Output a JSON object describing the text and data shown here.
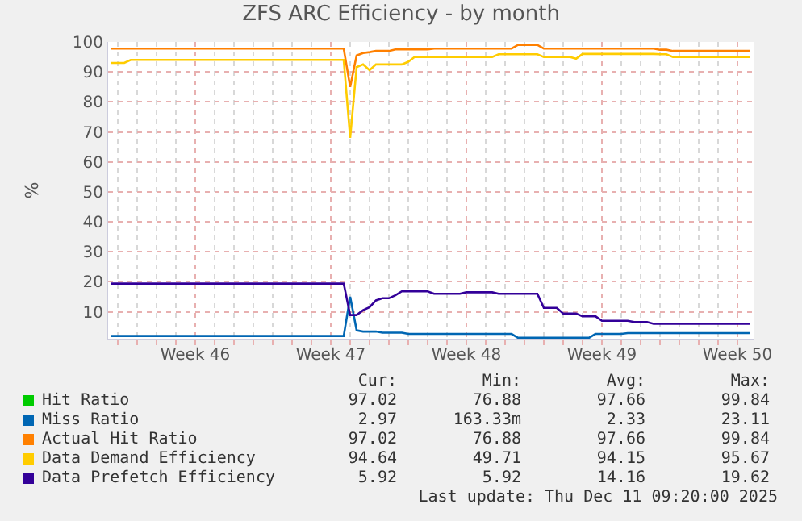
{
  "chart_data": {
    "type": "line",
    "title": "ZFS ARC Efficiency - by month",
    "ylabel": "%",
    "categories": [
      null,
      null,
      null,
      null,
      null,
      null,
      null,
      null,
      null,
      null,
      null,
      null,
      null,
      "Week 46",
      null,
      null,
      null,
      null,
      null,
      null,
      null,
      null,
      null,
      null,
      null,
      null,
      null,
      null,
      null,
      null,
      null,
      null,
      null,
      null,
      "Week 47",
      null,
      null,
      null,
      null,
      null,
      null,
      null,
      null,
      null,
      null,
      null,
      null,
      null,
      null,
      null,
      null,
      null,
      null,
      null,
      null,
      "Week 48",
      null,
      null,
      null,
      null,
      null,
      null,
      null,
      null,
      null,
      null,
      null,
      null,
      null,
      null,
      null,
      null,
      null,
      null,
      null,
      null,
      "Week 49",
      null,
      null,
      null,
      null,
      null,
      null,
      null,
      null,
      null,
      null,
      null,
      null,
      null,
      null,
      null,
      null,
      null,
      null,
      null,
      null,
      "Week 50",
      null,
      null
    ],
    "ylim": [
      1,
      100
    ],
    "yticks": [
      10,
      20,
      30,
      40,
      50,
      60,
      70,
      80,
      90,
      100
    ],
    "grid": true,
    "legend": "bottom left",
    "series": [
      {
        "name": "Hit Ratio",
        "color": "#00cc00",
        "values": [
          null,
          null,
          null,
          null,
          null,
          null,
          null,
          null,
          null,
          null,
          null,
          null,
          null,
          null,
          null,
          null,
          null,
          null,
          null,
          null,
          null,
          null,
          null,
          null,
          null,
          null,
          null,
          null,
          null,
          null,
          null,
          null,
          null,
          null,
          null,
          null,
          null,
          null,
          null,
          null,
          null,
          null,
          null,
          null,
          null,
          null,
          null,
          null,
          null,
          null,
          null,
          null,
          null,
          null,
          null,
          null,
          null,
          null,
          null,
          null,
          null,
          null,
          null,
          null,
          null,
          null,
          null,
          null,
          null,
          null,
          null,
          null,
          null,
          null,
          null,
          null,
          null,
          null,
          null,
          null,
          null,
          null,
          null,
          null,
          null,
          null,
          null,
          null,
          null,
          null,
          null,
          null,
          null,
          null,
          null,
          null,
          null,
          null,
          null,
          null
        ]
      },
      {
        "name": "Miss Ratio",
        "color": "#0066b3",
        "values": [
          1.9,
          1.9,
          1.9,
          1.9,
          1.9,
          1.9,
          1.9,
          1.9,
          1.9,
          1.9,
          1.9,
          1.9,
          1.9,
          1.9,
          1.9,
          1.9,
          1.9,
          1.9,
          1.9,
          1.9,
          1.9,
          1.9,
          1.9,
          1.9,
          1.9,
          1.9,
          1.9,
          1.9,
          1.9,
          1.9,
          1.9,
          1.9,
          1.9,
          1.9,
          1.9,
          1.9,
          1.9,
          15,
          3.8,
          3.4,
          3.4,
          3.4,
          3,
          3,
          3,
          3,
          2.6,
          2.6,
          2.6,
          2.6,
          2.6,
          2.6,
          2.6,
          2.6,
          2.6,
          2.6,
          2.6,
          2.6,
          2.6,
          2.6,
          2.6,
          2.6,
          2.6,
          1.3,
          1.3,
          1.3,
          1.3,
          1.3,
          1.3,
          1.3,
          1.3,
          1.3,
          1.3,
          1.3,
          1.3,
          2.6,
          2.6,
          2.6,
          2.6,
          2.6,
          2.9,
          2.9,
          2.9,
          2.9,
          2.9,
          2.9,
          2.9,
          2.9,
          2.9,
          2.9,
          2.9,
          2.9,
          2.9,
          2.9,
          2.9,
          2.9,
          2.9,
          2.9,
          2.9,
          2.9
        ]
      },
      {
        "name": "Actual Hit Ratio",
        "color": "#ff8000",
        "values": [
          97.8,
          97.8,
          97.8,
          97.8,
          97.8,
          97.8,
          97.8,
          97.8,
          97.8,
          97.8,
          97.8,
          97.8,
          97.8,
          97.8,
          97.8,
          97.8,
          97.8,
          97.8,
          97.8,
          97.8,
          97.8,
          97.8,
          97.8,
          97.8,
          97.8,
          97.8,
          97.8,
          97.8,
          97.8,
          97.8,
          97.8,
          97.8,
          97.8,
          97.8,
          97.8,
          97.8,
          97.8,
          85,
          95.5,
          96.3,
          96.6,
          97,
          97,
          97,
          97.5,
          97.5,
          97.5,
          97.5,
          97.5,
          97.5,
          97.8,
          97.8,
          97.8,
          97.8,
          97.8,
          97.8,
          97.8,
          97.8,
          97.8,
          97.8,
          97.8,
          97.8,
          97.8,
          99,
          99,
          99,
          99,
          97.8,
          97.8,
          97.8,
          97.8,
          97.8,
          97.8,
          97.8,
          97.8,
          97.8,
          97.8,
          97.8,
          97.8,
          97.8,
          97.8,
          97.8,
          97.8,
          97.8,
          97.8,
          97.4,
          97.4,
          97,
          97,
          97,
          97,
          97,
          97,
          97,
          97,
          97,
          97,
          97,
          97,
          97
        ]
      },
      {
        "name": "Data Demand Efficiency",
        "color": "#ffcc00",
        "values": [
          93,
          93,
          93,
          94,
          94,
          94,
          94,
          94,
          94,
          94,
          94,
          94,
          94,
          94,
          94,
          94,
          94,
          94,
          94,
          94,
          94,
          94,
          94,
          94,
          94,
          94,
          94,
          94,
          94,
          94,
          94,
          94,
          94,
          94,
          94,
          94,
          94,
          68,
          91.6,
          92.5,
          90.6,
          92.5,
          92.5,
          92.5,
          92.5,
          92.5,
          93.4,
          95,
          95,
          95,
          95,
          95,
          95,
          95,
          95,
          95,
          95,
          95,
          95,
          95,
          95.9,
          95.9,
          95.9,
          95.9,
          95.9,
          95.9,
          95.9,
          95,
          95,
          95,
          95,
          95,
          94.4,
          96,
          96,
          96,
          96,
          96,
          96,
          96,
          96,
          96,
          96,
          96,
          96,
          95.9,
          95.9,
          95,
          95,
          95,
          95,
          95,
          95,
          95,
          95,
          95,
          95,
          95,
          95,
          95
        ]
      },
      {
        "name": "Data Prefetch Efficiency",
        "color": "#330099",
        "values": [
          19.4,
          19.4,
          19.4,
          19.4,
          19.4,
          19.4,
          19.4,
          19.4,
          19.4,
          19.4,
          19.4,
          19.4,
          19.4,
          19.4,
          19.4,
          19.4,
          19.4,
          19.4,
          19.4,
          19.4,
          19.4,
          19.4,
          19.4,
          19.4,
          19.4,
          19.4,
          19.4,
          19.4,
          19.4,
          19.4,
          19.4,
          19.4,
          19.4,
          19.4,
          19.4,
          19.4,
          19.4,
          8.9,
          8.9,
          10.5,
          11.5,
          13.8,
          14.5,
          14.5,
          15.5,
          16.8,
          16.8,
          16.8,
          16.8,
          16.8,
          16,
          16,
          16,
          16,
          16,
          16.5,
          16.5,
          16.5,
          16.5,
          16.5,
          16,
          16,
          16,
          16,
          16,
          16,
          16,
          11.3,
          11.3,
          11.3,
          9.4,
          9.4,
          9.4,
          8.5,
          8.5,
          8.5,
          7,
          7,
          7,
          7,
          7,
          6.6,
          6.6,
          6.6,
          6,
          6,
          6,
          6,
          6,
          6,
          6,
          6,
          6,
          6,
          6,
          6,
          6,
          6,
          6,
          6
        ]
      }
    ],
    "annotations": [
      "Cur:",
      "Min:",
      "Avg:",
      "Max:",
      "97.02",
      "76.88",
      "97.66",
      "99.84",
      "2.97",
      "163.33m",
      "2.33",
      "23.11",
      "97.02",
      "76.88",
      "97.66",
      "99.84",
      "94.64",
      "49.71",
      "94.15",
      "95.67",
      "5.92",
      "5.92",
      "14.16",
      "19.62",
      "Last update: Thu Dec 11 09:20:00 2025"
    ]
  }
}
